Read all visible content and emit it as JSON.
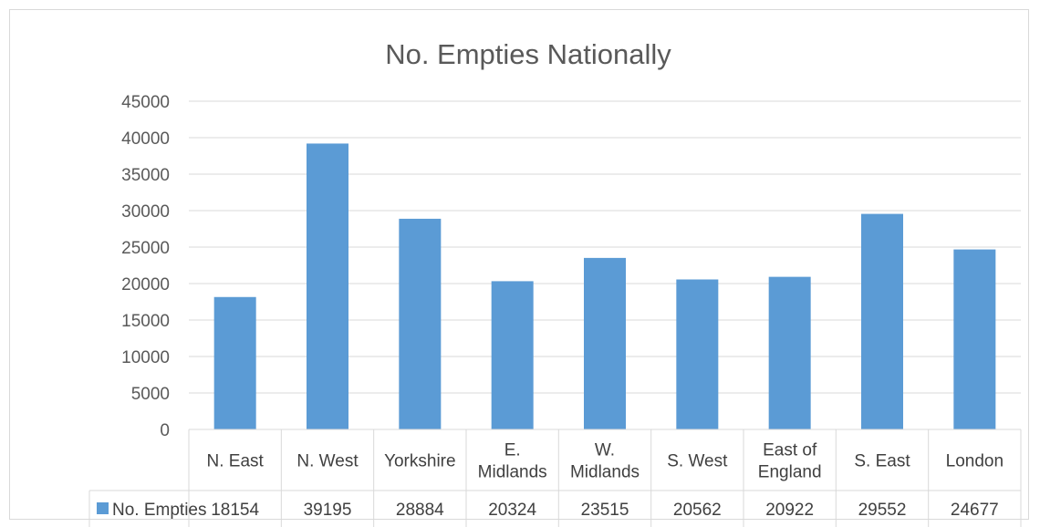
{
  "chart_data": {
    "type": "bar",
    "title": "No. Empties Nationally",
    "categories": [
      [
        "N. East"
      ],
      [
        "N. West"
      ],
      [
        "Yorkshire"
      ],
      [
        "E.",
        "Midlands"
      ],
      [
        "W.",
        "Midlands"
      ],
      [
        "S. West"
      ],
      [
        "East of",
        "England"
      ],
      [
        "S. East"
      ],
      [
        "London"
      ]
    ],
    "series": [
      {
        "name": "No. Empties",
        "values": [
          18154,
          39195,
          28884,
          20324,
          23515,
          20562,
          20922,
          29552,
          24677
        ]
      }
    ],
    "y_ticks": [
      "0",
      "5000",
      "10000",
      "15000",
      "20000",
      "25000",
      "30000",
      "35000",
      "40000",
      "45000"
    ],
    "ylim": [
      0,
      45000
    ],
    "grid": true,
    "data_table": true,
    "bar_color": "#5b9bd5"
  }
}
